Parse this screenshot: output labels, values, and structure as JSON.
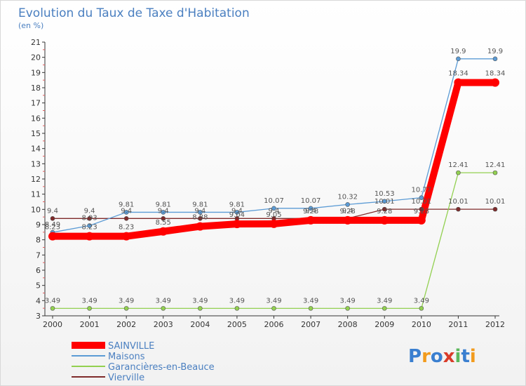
{
  "chart_data": {
    "type": "line",
    "title": "Evolution du Taux de Taxe d'Habitation",
    "subtitle": "(en %)",
    "x": [
      "2000",
      "2001",
      "2002",
      "2003",
      "2004",
      "2005",
      "2006",
      "2007",
      "2008",
      "2009",
      "2010",
      "2011",
      "2012"
    ],
    "ylim": [
      3,
      21
    ],
    "yticks": [
      3,
      4,
      5,
      6,
      7,
      8,
      9,
      10,
      11,
      12,
      13,
      14,
      15,
      16,
      17,
      18,
      19,
      20,
      21
    ],
    "grid": false,
    "legend_position": "bottom-left",
    "series": [
      {
        "name": "SAINVILLE",
        "color": "#ff0000",
        "values": [
          8.23,
          8.23,
          8.23,
          8.55,
          8.88,
          9.04,
          9.05,
          9.28,
          9.28,
          9.28,
          9.28,
          18.34,
          18.34
        ]
      },
      {
        "name": "Maisons",
        "color": "#5b9bd5",
        "values": [
          8.49,
          8.93,
          9.81,
          9.81,
          9.81,
          9.81,
          10.07,
          10.07,
          10.32,
          10.53,
          10.77,
          19.9,
          19.9
        ]
      },
      {
        "name": "Garancières-en-Beauce",
        "color": "#92d050",
        "values": [
          3.49,
          3.49,
          3.49,
          3.49,
          3.49,
          3.49,
          3.49,
          3.49,
          3.49,
          3.49,
          3.49,
          12.41,
          12.41
        ]
      },
      {
        "name": "Vierville",
        "color": "#7f2a2a",
        "values": [
          9.4,
          9.4,
          9.4,
          9.4,
          9.4,
          9.4,
          9.4,
          9.4,
          9.4,
          10.01,
          10.01,
          10.01,
          10.01
        ]
      }
    ]
  },
  "brand": {
    "letters": [
      "P",
      "r",
      "o",
      "x",
      "i",
      "t",
      "i"
    ],
    "colors": [
      "#3a7fd0",
      "#f29b1d",
      "#3a7fd0",
      "#d93c2a",
      "#5cb85c",
      "#3a7fd0",
      "#f29b1d"
    ]
  }
}
